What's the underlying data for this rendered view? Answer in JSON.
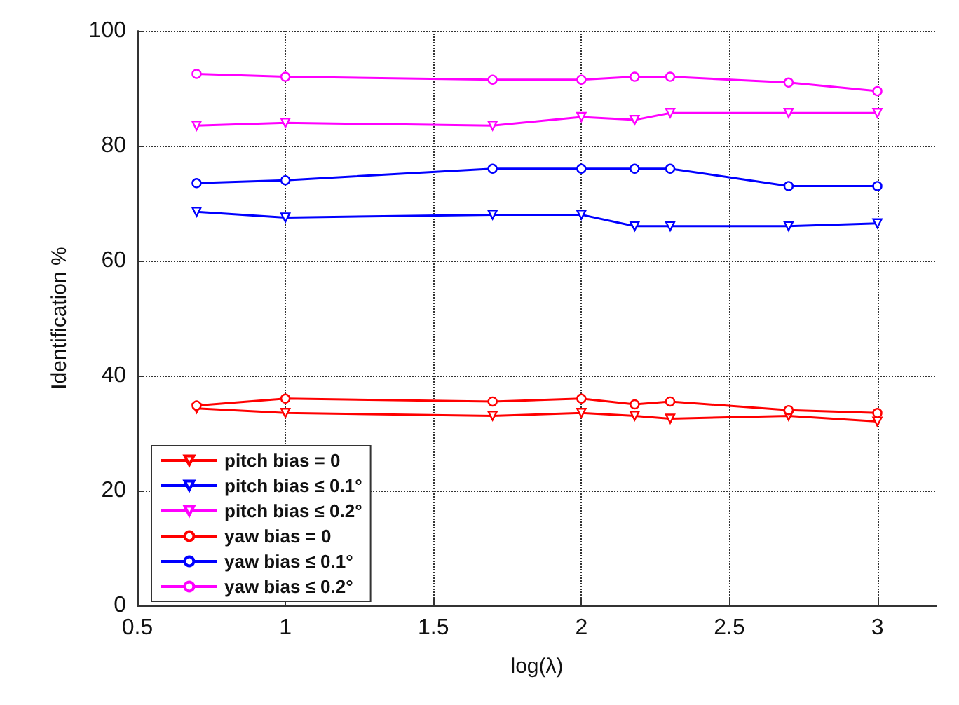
{
  "chart_data": {
    "type": "line",
    "xlabel": "log(λ)",
    "ylabel": "Identification %",
    "x": [
      0.7,
      1,
      1.7,
      2,
      2.18,
      2.3,
      2.7,
      3
    ],
    "xlim": [
      0.5,
      3.2
    ],
    "xticks": [
      0.5,
      1,
      1.5,
      2,
      2.5,
      3
    ],
    "ylim": [
      0,
      100
    ],
    "yticks": [
      0,
      20,
      40,
      60,
      80,
      100
    ],
    "grid": true,
    "legend": "bottom left",
    "line_style": "solid",
    "series": [
      {
        "name": "pitch bias = 0",
        "color": "#ff0000",
        "marker": "triangle",
        "values": [
          34.3,
          33.5,
          33,
          33.5,
          33,
          32.5,
          33,
          32
        ]
      },
      {
        "name": "pitch bias ≤ 0.1°",
        "color": "#0000ff",
        "marker": "triangle",
        "values": [
          68.5,
          67.5,
          68,
          68,
          66,
          66,
          66,
          66.5
        ]
      },
      {
        "name": "pitch bias ≤ 0.2°",
        "color": "#ff00ff",
        "marker": "triangle",
        "values": [
          83.5,
          84,
          83.5,
          85,
          84.5,
          85.7,
          85.7,
          85.7
        ]
      },
      {
        "name": "yaw bias = 0",
        "color": "#ff0000",
        "marker": "circle",
        "values": [
          34.8,
          36,
          35.5,
          36,
          35,
          35.5,
          34,
          33.5
        ]
      },
      {
        "name": "yaw bias ≤ 0.1°",
        "color": "#0000ff",
        "marker": "circle",
        "values": [
          73.5,
          74,
          76,
          76,
          76,
          76,
          73,
          73
        ]
      },
      {
        "name": "yaw bias ≤ 0.2°",
        "color": "#ff00ff",
        "marker": "circle",
        "values": [
          92.5,
          92,
          91.5,
          91.5,
          92,
          92,
          91,
          89.5
        ]
      }
    ]
  }
}
